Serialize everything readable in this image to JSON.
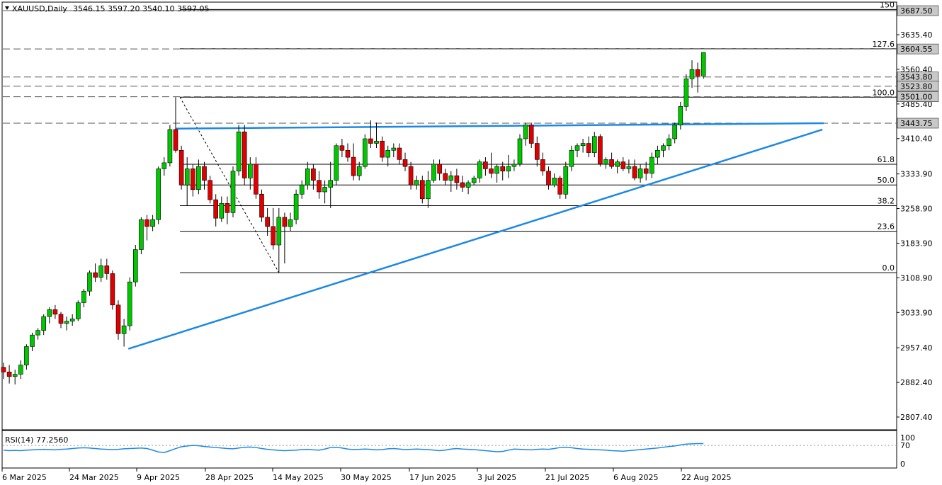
{
  "header": {
    "symbol": "XAUUSD,Daily",
    "ohlc": "3546.15 3597.20 3540.10 3597.05"
  },
  "rsi": {
    "label": "RSI(14) 77.2560",
    "levels": [
      100,
      70,
      0
    ],
    "level_labels": [
      "100",
      "70",
      "0"
    ],
    "values": [
      52,
      50,
      51,
      50,
      52,
      53,
      54,
      55,
      54,
      53,
      55,
      56,
      58,
      60,
      61,
      60,
      58,
      56,
      55,
      54,
      55,
      57,
      58,
      59,
      60,
      58,
      52,
      45,
      43,
      50,
      58,
      65,
      68,
      70,
      69,
      66,
      64,
      62,
      60,
      58,
      57,
      60,
      63,
      64,
      62,
      58,
      55,
      53,
      51,
      50,
      51,
      52,
      54,
      55,
      53,
      52,
      56,
      62,
      63,
      60,
      56,
      54,
      55,
      56,
      55,
      53,
      54,
      57,
      58,
      56,
      54,
      55,
      56,
      55,
      54,
      52,
      50,
      52,
      56,
      58,
      56,
      55,
      54,
      52,
      50,
      48,
      46,
      47,
      52,
      56,
      55,
      54,
      53,
      55,
      56,
      55,
      58,
      62,
      63,
      61,
      58,
      56,
      55,
      54,
      53,
      52,
      50,
      49,
      48,
      50,
      52,
      54,
      56,
      58,
      60,
      63,
      66,
      68,
      72,
      75,
      76,
      77,
      77
    ]
  },
  "x_labels": [
    "6 Mar 2025",
    "24 Mar 2025",
    "9 Apr 2025",
    "28 Apr 2025",
    "14 May 2025",
    "30 May 2025",
    "17 Jun 2025",
    "3 Jul 2025",
    "21 Jul 2025",
    "6 Aug 2025",
    "22 Aug 2025"
  ],
  "colors": {
    "bull": "#00c800",
    "bear": "#e00000",
    "trend": "#1e88e5",
    "rsi": "#1e88e5",
    "grid": "#000000"
  },
  "chart_data": {
    "type": "candlestick",
    "title": "XAUUSD,Daily",
    "y_ticks": [
      3635.4,
      3560.4,
      3485.4,
      3410.4,
      3333.9,
      3258.9,
      3183.9,
      3108.9,
      3033.9,
      2957.4,
      2882.4,
      2807.4
    ],
    "y_tick_labels": [
      "3635.40",
      "3560.40",
      "3485.40",
      "3410.40",
      "3333.90",
      "3258.90",
      "3183.90",
      "3108.90",
      "3033.90",
      "2957.40",
      "2882.40",
      "2807.40"
    ],
    "ylim": [
      2780,
      3700
    ],
    "price_badges": [
      {
        "value": 3687.5,
        "label": "3687.50"
      },
      {
        "value": 3604.55,
        "label": "3604.55"
      },
      {
        "value": 3543.8,
        "label": "3543.80"
      },
      {
        "value": 3523.8,
        "label": "3523.80"
      },
      {
        "value": 3501.0,
        "label": "3501.00"
      },
      {
        "value": 3443.75,
        "label": "3443.75"
      }
    ],
    "fibonacci": {
      "high": 3500.0,
      "low": 3120.0,
      "levels": [
        {
          "ratio": 1.5,
          "label": "150"
        },
        {
          "ratio": 1.276,
          "label": "127.6"
        },
        {
          "ratio": 1.0,
          "label": "100.0"
        },
        {
          "ratio": 0.618,
          "label": "61.8"
        },
        {
          "ratio": 0.5,
          "label": "50.0"
        },
        {
          "ratio": 0.382,
          "label": "38.2"
        },
        {
          "ratio": 0.236,
          "label": "23.6"
        },
        {
          "ratio": 0.0,
          "label": "0.0"
        }
      ]
    },
    "candles": [
      [
        2915,
        2925,
        2890,
        2905
      ],
      [
        2905,
        2920,
        2880,
        2895
      ],
      [
        2895,
        2910,
        2878,
        2900
      ],
      [
        2900,
        2930,
        2890,
        2920
      ],
      [
        2920,
        2965,
        2910,
        2960
      ],
      [
        2960,
        2990,
        2950,
        2985
      ],
      [
        2985,
        3000,
        2975,
        2995
      ],
      [
        2995,
        3030,
        2985,
        3025
      ],
      [
        3025,
        3045,
        3010,
        3040
      ],
      [
        3040,
        3050,
        3020,
        3030
      ],
      [
        3030,
        3035,
        3000,
        3010
      ],
      [
        3010,
        3025,
        2995,
        3015
      ],
      [
        3015,
        3030,
        3005,
        3020
      ],
      [
        3020,
        3060,
        3015,
        3055
      ],
      [
        3055,
        3085,
        3045,
        3080
      ],
      [
        3080,
        3125,
        3070,
        3120
      ],
      [
        3120,
        3140,
        3100,
        3110
      ],
      [
        3110,
        3150,
        3100,
        3135
      ],
      [
        3135,
        3150,
        3105,
        3118
      ],
      [
        3118,
        3125,
        3040,
        3050
      ],
      [
        3050,
        3060,
        2975,
        2988
      ],
      [
        2988,
        3020,
        2960,
        3005
      ],
      [
        3005,
        3110,
        2995,
        3100
      ],
      [
        3100,
        3180,
        3090,
        3170
      ],
      [
        3170,
        3240,
        3160,
        3235
      ],
      [
        3235,
        3245,
        3190,
        3220
      ],
      [
        3220,
        3245,
        3210,
        3235
      ],
      [
        3235,
        3350,
        3225,
        3345
      ],
      [
        3345,
        3370,
        3330,
        3358
      ],
      [
        3358,
        3440,
        3350,
        3430
      ],
      [
        3430,
        3500,
        3380,
        3385
      ],
      [
        3385,
        3395,
        3300,
        3310
      ],
      [
        3310,
        3370,
        3265,
        3345
      ],
      [
        3345,
        3355,
        3285,
        3300
      ],
      [
        3300,
        3365,
        3290,
        3350
      ],
      [
        3350,
        3360,
        3300,
        3320
      ],
      [
        3320,
        3330,
        3270,
        3278
      ],
      [
        3278,
        3290,
        3220,
        3238
      ],
      [
        3238,
        3285,
        3230,
        3270
      ],
      [
        3270,
        3285,
        3225,
        3250
      ],
      [
        3250,
        3350,
        3240,
        3340
      ],
      [
        3340,
        3440,
        3330,
        3425
      ],
      [
        3425,
        3440,
        3310,
        3325
      ],
      [
        3325,
        3370,
        3300,
        3355
      ],
      [
        3355,
        3370,
        3280,
        3290
      ],
      [
        3290,
        3300,
        3230,
        3240
      ],
      [
        3240,
        3260,
        3200,
        3220
      ],
      [
        3220,
        3260,
        3170,
        3180
      ],
      [
        3180,
        3260,
        3120,
        3240
      ],
      [
        3240,
        3250,
        3140,
        3220
      ],
      [
        3220,
        3250,
        3210,
        3235
      ],
      [
        3235,
        3300,
        3225,
        3290
      ],
      [
        3290,
        3320,
        3280,
        3310
      ],
      [
        3310,
        3360,
        3300,
        3345
      ],
      [
        3345,
        3355,
        3300,
        3320
      ],
      [
        3320,
        3340,
        3280,
        3295
      ],
      [
        3295,
        3320,
        3270,
        3305
      ],
      [
        3305,
        3360,
        3260,
        3320
      ],
      [
        3320,
        3400,
        3310,
        3395
      ],
      [
        3395,
        3410,
        3370,
        3385
      ],
      [
        3385,
        3400,
        3360,
        3370
      ],
      [
        3370,
        3400,
        3320,
        3330
      ],
      [
        3330,
        3360,
        3320,
        3350
      ],
      [
        3350,
        3420,
        3345,
        3410
      ],
      [
        3410,
        3450,
        3390,
        3400
      ],
      [
        3400,
        3445,
        3390,
        3405
      ],
      [
        3405,
        3415,
        3360,
        3370
      ],
      [
        3370,
        3395,
        3350,
        3385
      ],
      [
        3385,
        3400,
        3370,
        3390
      ],
      [
        3390,
        3400,
        3355,
        3365
      ],
      [
        3365,
        3380,
        3340,
        3350
      ],
      [
        3350,
        3360,
        3300,
        3310
      ],
      [
        3310,
        3330,
        3300,
        3320
      ],
      [
        3320,
        3330,
        3270,
        3280
      ],
      [
        3280,
        3340,
        3260,
        3320
      ],
      [
        3320,
        3365,
        3315,
        3355
      ],
      [
        3355,
        3365,
        3320,
        3335
      ],
      [
        3335,
        3345,
        3310,
        3320
      ],
      [
        3320,
        3340,
        3295,
        3330
      ],
      [
        3330,
        3345,
        3300,
        3315
      ],
      [
        3315,
        3330,
        3295,
        3305
      ],
      [
        3305,
        3320,
        3290,
        3315
      ],
      [
        3315,
        3330,
        3310,
        3325
      ],
      [
        3325,
        3365,
        3315,
        3360
      ],
      [
        3360,
        3370,
        3330,
        3345
      ],
      [
        3345,
        3380,
        3325,
        3335
      ],
      [
        3335,
        3355,
        3315,
        3350
      ],
      [
        3350,
        3360,
        3320,
        3340
      ],
      [
        3340,
        3375,
        3325,
        3350
      ],
      [
        3350,
        3365,
        3340,
        3355
      ],
      [
        3355,
        3420,
        3350,
        3410
      ],
      [
        3410,
        3445,
        3395,
        3440
      ],
      [
        3440,
        3445,
        3390,
        3400
      ],
      [
        3400,
        3415,
        3350,
        3365
      ],
      [
        3365,
        3380,
        3330,
        3340
      ],
      [
        3340,
        3350,
        3300,
        3310
      ],
      [
        3310,
        3335,
        3305,
        3325
      ],
      [
        3325,
        3330,
        3280,
        3290
      ],
      [
        3290,
        3360,
        3280,
        3350
      ],
      [
        3350,
        3395,
        3340,
        3385
      ],
      [
        3385,
        3400,
        3370,
        3395
      ],
      [
        3395,
        3410,
        3380,
        3400
      ],
      [
        3400,
        3415,
        3370,
        3380
      ],
      [
        3380,
        3425,
        3370,
        3415
      ],
      [
        3415,
        3420,
        3350,
        3355
      ],
      [
        3355,
        3370,
        3345,
        3365
      ],
      [
        3365,
        3380,
        3345,
        3350
      ],
      [
        3350,
        3365,
        3335,
        3360
      ],
      [
        3360,
        3370,
        3340,
        3345
      ],
      [
        3345,
        3365,
        3335,
        3350
      ],
      [
        3350,
        3365,
        3320,
        3325
      ],
      [
        3325,
        3355,
        3315,
        3345
      ],
      [
        3345,
        3360,
        3320,
        3335
      ],
      [
        3335,
        3380,
        3325,
        3370
      ],
      [
        3370,
        3395,
        3355,
        3385
      ],
      [
        3385,
        3400,
        3370,
        3395
      ],
      [
        3395,
        3420,
        3385,
        3410
      ],
      [
        3410,
        3445,
        3400,
        3440
      ],
      [
        3440,
        3490,
        3430,
        3480
      ],
      [
        3480,
        3550,
        3470,
        3540
      ],
      [
        3540,
        3580,
        3520,
        3560
      ],
      [
        3560,
        3575,
        3510,
        3546
      ],
      [
        3546,
        3597,
        3540,
        3597
      ]
    ]
  }
}
